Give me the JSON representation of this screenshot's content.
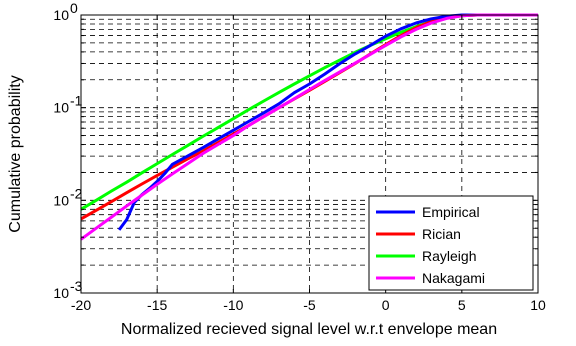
{
  "chart_data": {
    "type": "line",
    "title": "",
    "xlabel": "Normalized recieved signal level w.r.t envelope mean",
    "ylabel": "Cumulative probability",
    "xlim": [
      -20,
      10
    ],
    "ylim": [
      0.001,
      1
    ],
    "yscale": "log",
    "grid": true,
    "legend_position": "bottom-right",
    "x_ticks": [
      -20,
      -15,
      -10,
      -5,
      0,
      5,
      10
    ],
    "x_tick_labels": [
      "-20",
      "-15",
      "-10",
      "-5",
      "0",
      "5",
      "10"
    ],
    "y_ticks": [
      0.001,
      0.01,
      0.1,
      1
    ],
    "y_tick_labels": [
      {
        "base": "10",
        "exp": "-3"
      },
      {
        "base": "10",
        "exp": "-2"
      },
      {
        "base": "10",
        "exp": "-1"
      },
      {
        "base": "10",
        "exp": "0"
      }
    ],
    "series": [
      {
        "name": "Empirical",
        "color": "#0000ff",
        "points": [
          [
            -17.5,
            0.0048
          ],
          [
            -17.0,
            0.0062
          ],
          [
            -16.5,
            0.0095
          ],
          [
            -16.0,
            0.0115
          ],
          [
            -15.5,
            0.0135
          ],
          [
            -15.0,
            0.016
          ],
          [
            -14.5,
            0.0195
          ],
          [
            -14.0,
            0.0245
          ],
          [
            -13.0,
            0.03
          ],
          [
            -12.0,
            0.037
          ],
          [
            -11.0,
            0.046
          ],
          [
            -10.0,
            0.057
          ],
          [
            -9.0,
            0.071
          ],
          [
            -8.0,
            0.088
          ],
          [
            -7.0,
            0.11
          ],
          [
            -6.0,
            0.145
          ],
          [
            -5.0,
            0.18
          ],
          [
            -4.0,
            0.23
          ],
          [
            -3.0,
            0.3
          ],
          [
            -2.0,
            0.38
          ],
          [
            -1.0,
            0.47
          ],
          [
            0.0,
            0.59
          ],
          [
            1.0,
            0.71
          ],
          [
            2.0,
            0.82
          ],
          [
            3.0,
            0.91
          ],
          [
            4.0,
            0.97
          ],
          [
            5.0,
            1.0
          ],
          [
            10.0,
            1.0
          ]
        ]
      },
      {
        "name": "Rician",
        "color": "#ff0000",
        "points": [
          [
            -20,
            0.0063
          ],
          [
            -19,
            0.0078
          ],
          [
            -18,
            0.0097
          ],
          [
            -17,
            0.0121
          ],
          [
            -16,
            0.015
          ],
          [
            -15,
            0.0186
          ],
          [
            -14,
            0.0228
          ],
          [
            -13,
            0.028
          ],
          [
            -12,
            0.034
          ],
          [
            -11,
            0.042
          ],
          [
            -10,
            0.052
          ],
          [
            -9,
            0.064
          ],
          [
            -8,
            0.08
          ],
          [
            -7,
            0.1
          ],
          [
            -6,
            0.124
          ],
          [
            -5,
            0.154
          ],
          [
            -4,
            0.192
          ],
          [
            -3,
            0.24
          ],
          [
            -2,
            0.3
          ],
          [
            -1,
            0.38
          ],
          [
            0,
            0.48
          ],
          [
            1,
            0.6
          ],
          [
            2,
            0.73
          ],
          [
            3,
            0.85
          ],
          [
            4,
            0.94
          ],
          [
            5,
            0.985
          ],
          [
            6,
            1.0
          ],
          [
            10,
            1.0
          ]
        ]
      },
      {
        "name": "Rayleigh",
        "color": "#00ff00",
        "points": [
          [
            -20,
            0.008
          ],
          [
            -19,
            0.01
          ],
          [
            -18,
            0.0126
          ],
          [
            -17,
            0.0157
          ],
          [
            -16,
            0.0198
          ],
          [
            -15,
            0.0249
          ],
          [
            -14,
            0.0312
          ],
          [
            -13,
            0.039
          ],
          [
            -12,
            0.049
          ],
          [
            -11,
            0.061
          ],
          [
            -10,
            0.076
          ],
          [
            -9,
            0.095
          ],
          [
            -8,
            0.118
          ],
          [
            -7,
            0.146
          ],
          [
            -6,
            0.18
          ],
          [
            -5,
            0.221
          ],
          [
            -4,
            0.27
          ],
          [
            -3,
            0.328
          ],
          [
            -2,
            0.396
          ],
          [
            -1,
            0.47
          ],
          [
            0,
            0.555
          ],
          [
            1,
            0.65
          ],
          [
            2,
            0.75
          ],
          [
            3,
            0.85
          ],
          [
            4,
            0.93
          ],
          [
            5,
            0.98
          ],
          [
            6,
            1.0
          ],
          [
            10,
            1.0
          ]
        ]
      },
      {
        "name": "Nakagami",
        "color": "#ff00ff",
        "points": [
          [
            -20,
            0.0038
          ],
          [
            -19,
            0.005
          ],
          [
            -18,
            0.0066
          ],
          [
            -17,
            0.0087
          ],
          [
            -16,
            0.0114
          ],
          [
            -15,
            0.0149
          ],
          [
            -14,
            0.0193
          ],
          [
            -13,
            0.0248
          ],
          [
            -12,
            0.032
          ],
          [
            -11,
            0.04
          ],
          [
            -10,
            0.05
          ],
          [
            -9,
            0.064
          ],
          [
            -8,
            0.08
          ],
          [
            -7,
            0.1
          ],
          [
            -6,
            0.125
          ],
          [
            -5,
            0.157
          ],
          [
            -4,
            0.196
          ],
          [
            -3,
            0.244
          ],
          [
            -2,
            0.303
          ],
          [
            -1,
            0.377
          ],
          [
            0,
            0.47
          ],
          [
            1,
            0.58
          ],
          [
            2,
            0.7
          ],
          [
            3,
            0.82
          ],
          [
            4,
            0.92
          ],
          [
            5,
            0.98
          ],
          [
            6,
            1.0
          ],
          [
            10,
            1.0
          ]
        ]
      }
    ]
  }
}
